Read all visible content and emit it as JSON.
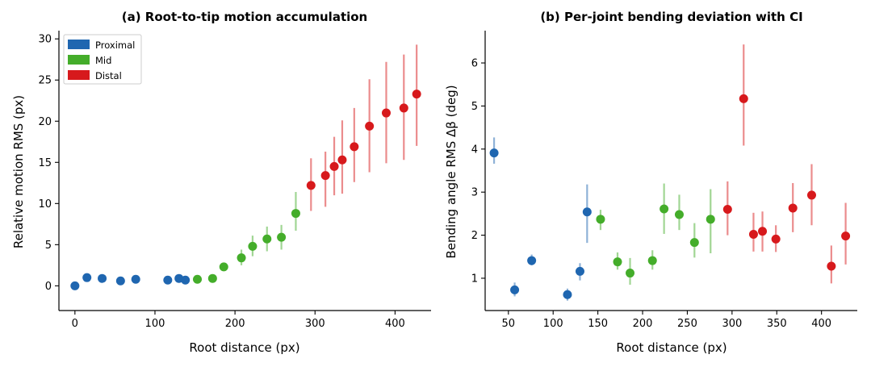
{
  "colors": {
    "Proximal": "#1f66b0",
    "Mid": "#44ad2a",
    "Distal": "#d7191c"
  },
  "chart_data": [
    {
      "type": "scatter",
      "title": "(a) Root-to-tip motion accumulation",
      "xlabel": "Root distance (px)",
      "ylabel": "Relative motion RMS (px)",
      "xlim": [
        -20,
        445
      ],
      "ylim": [
        -3,
        31
      ],
      "xticks": [
        0,
        100,
        200,
        300,
        400
      ],
      "yticks": [
        0,
        5,
        10,
        15,
        20,
        25,
        30
      ],
      "grid": false,
      "legend": {
        "position": "top-left",
        "entries": [
          "Proximal",
          "Mid",
          "Distal"
        ]
      },
      "series": [
        {
          "name": "Proximal",
          "points": [
            {
              "x": 0,
              "y": 0.0,
              "lo": 0.0,
              "hi": 0.0
            },
            {
              "x": 15,
              "y": 1.0,
              "lo": 1.0,
              "hi": 1.0
            },
            {
              "x": 34,
              "y": 0.9,
              "lo": 0.9,
              "hi": 0.9
            },
            {
              "x": 57,
              "y": 0.6,
              "lo": 0.6,
              "hi": 0.6
            },
            {
              "x": 76,
              "y": 0.8,
              "lo": 0.8,
              "hi": 0.8
            },
            {
              "x": 116,
              "y": 0.7,
              "lo": 0.7,
              "hi": 0.7
            },
            {
              "x": 130,
              "y": 0.9,
              "lo": 0.9,
              "hi": 0.9
            },
            {
              "x": 138,
              "y": 0.7,
              "lo": 0.7,
              "hi": 0.7
            }
          ]
        },
        {
          "name": "Mid",
          "points": [
            {
              "x": 153,
              "y": 0.8,
              "lo": 0.8,
              "hi": 0.8
            },
            {
              "x": 172,
              "y": 0.9,
              "lo": 0.9,
              "hi": 0.9
            },
            {
              "x": 186,
              "y": 2.3,
              "lo": 1.8,
              "hi": 2.8
            },
            {
              "x": 208,
              "y": 3.4,
              "lo": 2.5,
              "hi": 4.4
            },
            {
              "x": 222,
              "y": 4.8,
              "lo": 3.6,
              "hi": 6.1
            },
            {
              "x": 240,
              "y": 5.7,
              "lo": 4.2,
              "hi": 7.2
            },
            {
              "x": 258,
              "y": 5.9,
              "lo": 4.4,
              "hi": 7.4
            },
            {
              "x": 276,
              "y": 8.8,
              "lo": 6.7,
              "hi": 11.4
            }
          ]
        },
        {
          "name": "Distal",
          "points": [
            {
              "x": 295,
              "y": 12.2,
              "lo": 9.1,
              "hi": 15.5
            },
            {
              "x": 313,
              "y": 13.4,
              "lo": 9.6,
              "hi": 16.3
            },
            {
              "x": 324,
              "y": 14.5,
              "lo": 11.0,
              "hi": 18.1
            },
            {
              "x": 334,
              "y": 15.3,
              "lo": 11.2,
              "hi": 20.1
            },
            {
              "x": 349,
              "y": 16.9,
              "lo": 12.6,
              "hi": 21.6
            },
            {
              "x": 368,
              "y": 19.4,
              "lo": 13.8,
              "hi": 25.1
            },
            {
              "x": 389,
              "y": 21.0,
              "lo": 14.9,
              "hi": 27.2
            },
            {
              "x": 411,
              "y": 21.6,
              "lo": 15.3,
              "hi": 28.1
            },
            {
              "x": 427,
              "y": 23.3,
              "lo": 17.0,
              "hi": 29.3
            }
          ]
        }
      ]
    },
    {
      "type": "scatter",
      "title": "(b) Per-joint bending deviation with CI",
      "xlabel": "Root distance (px)",
      "ylabel": "Bending angle RMS Δβ (deg)",
      "xlim": [
        24,
        440
      ],
      "ylim": [
        0.25,
        6.75
      ],
      "xticks": [
        50,
        100,
        150,
        200,
        250,
        300,
        350,
        400
      ],
      "yticks": [
        1,
        2,
        3,
        4,
        5,
        6
      ],
      "grid": false,
      "series": [
        {
          "name": "Proximal",
          "points": [
            {
              "x": 34,
              "y": 3.91,
              "lo": 3.66,
              "hi": 4.27
            },
            {
              "x": 57,
              "y": 0.73,
              "lo": 0.58,
              "hi": 0.9
            },
            {
              "x": 76,
              "y": 1.41,
              "lo": 1.3,
              "hi": 1.55
            },
            {
              "x": 116,
              "y": 0.62,
              "lo": 0.48,
              "hi": 0.76
            },
            {
              "x": 130,
              "y": 1.16,
              "lo": 0.95,
              "hi": 1.35
            },
            {
              "x": 138,
              "y": 2.54,
              "lo": 1.82,
              "hi": 3.18
            }
          ]
        },
        {
          "name": "Mid",
          "points": [
            {
              "x": 153,
              "y": 2.37,
              "lo": 2.12,
              "hi": 2.59
            },
            {
              "x": 172,
              "y": 1.38,
              "lo": 1.2,
              "hi": 1.6
            },
            {
              "x": 186,
              "y": 1.12,
              "lo": 0.85,
              "hi": 1.47
            },
            {
              "x": 211,
              "y": 1.41,
              "lo": 1.2,
              "hi": 1.65
            },
            {
              "x": 224,
              "y": 2.61,
              "lo": 2.03,
              "hi": 3.2
            },
            {
              "x": 241,
              "y": 2.48,
              "lo": 2.12,
              "hi": 2.94
            },
            {
              "x": 258,
              "y": 1.83,
              "lo": 1.48,
              "hi": 2.28
            },
            {
              "x": 276,
              "y": 2.37,
              "lo": 1.58,
              "hi": 3.07
            }
          ]
        },
        {
          "name": "Distal",
          "points": [
            {
              "x": 295,
              "y": 2.6,
              "lo": 2.0,
              "hi": 3.25
            },
            {
              "x": 313,
              "y": 5.17,
              "lo": 4.08,
              "hi": 6.43
            },
            {
              "x": 324,
              "y": 2.02,
              "lo": 1.62,
              "hi": 2.52
            },
            {
              "x": 334,
              "y": 2.09,
              "lo": 1.62,
              "hi": 2.55
            },
            {
              "x": 349,
              "y": 1.91,
              "lo": 1.61,
              "hi": 2.23
            },
            {
              "x": 368,
              "y": 2.63,
              "lo": 2.07,
              "hi": 3.21
            },
            {
              "x": 389,
              "y": 2.93,
              "lo": 2.23,
              "hi": 3.65
            },
            {
              "x": 411,
              "y": 1.28,
              "lo": 0.88,
              "hi": 1.76
            },
            {
              "x": 427,
              "y": 1.98,
              "lo": 1.32,
              "hi": 2.75
            }
          ]
        }
      ]
    }
  ]
}
